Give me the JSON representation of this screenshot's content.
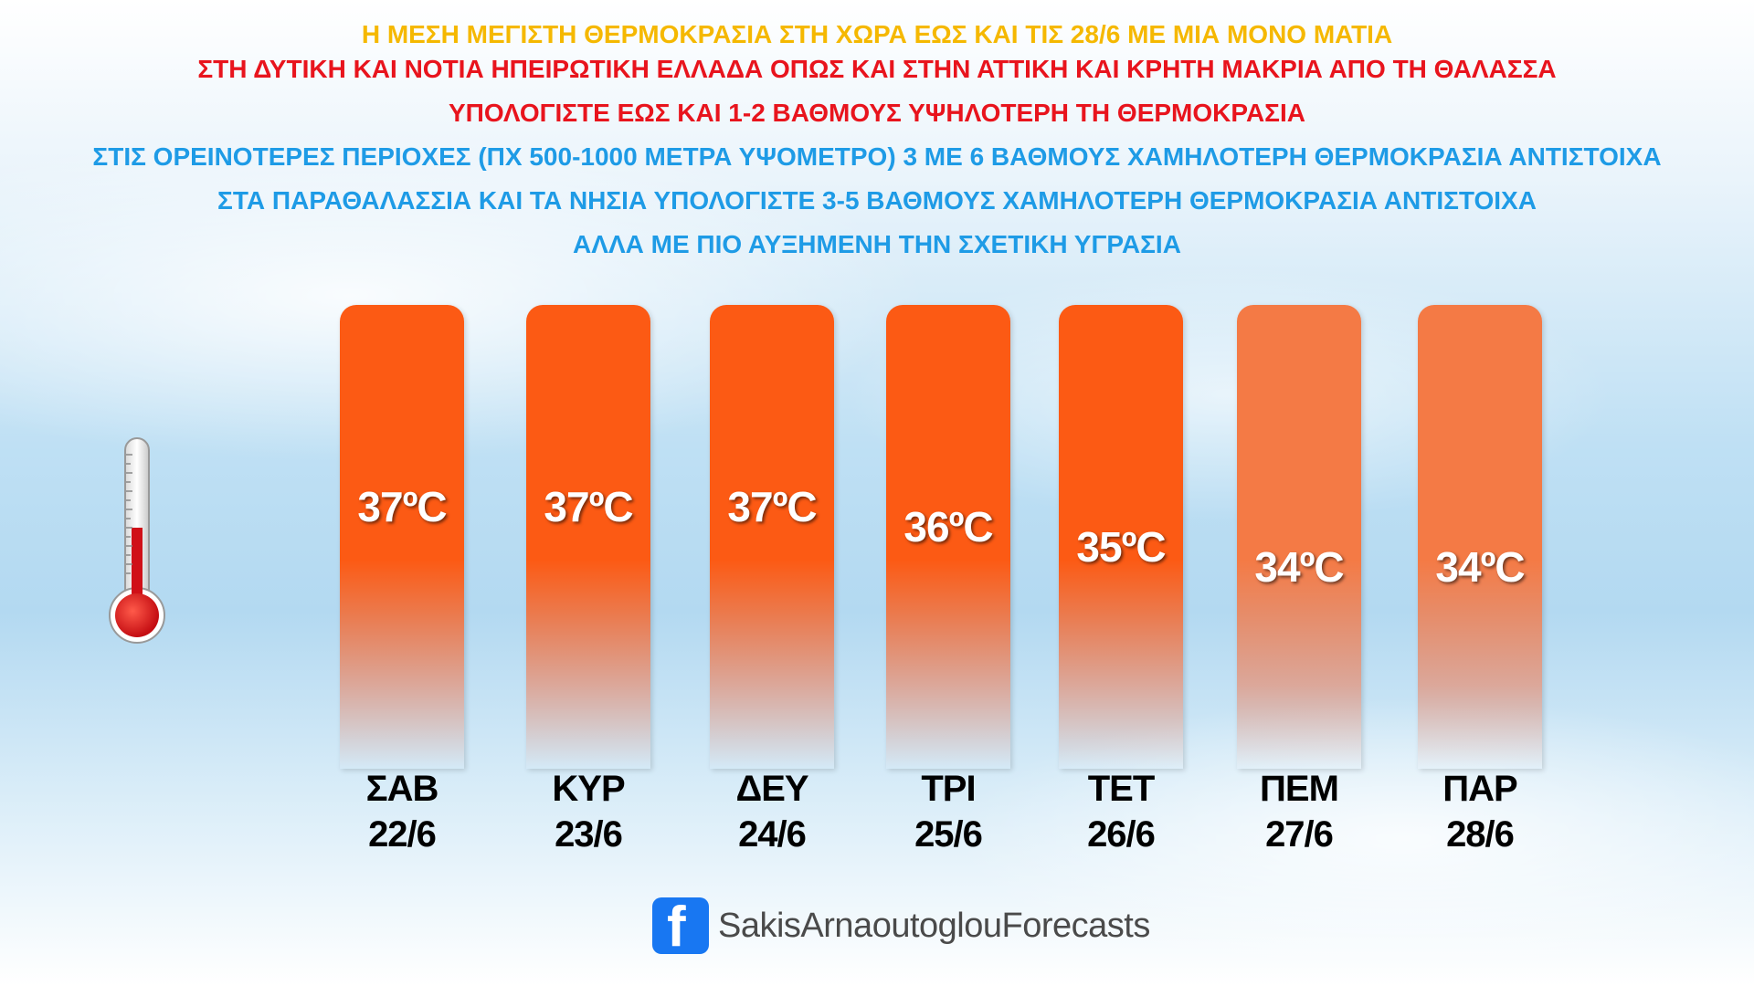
{
  "header": {
    "line1": "Η ΜΕΣΗ ΜΕΓΙΣΤΗ ΘΕΡΜΟΚΡΑΣΙΑ ΣΤΗ ΧΩΡΑ ΕΩΣ ΚΑΙ ΤΙΣ 28/6 ΜΕ ΜΙΑ ΜΟΝΟ ΜΑΤΙΑ",
    "line2": "ΣΤΗ ΔΥΤΙΚΗ ΚΑΙ ΝΟΤΙΑ ΗΠΕΙΡΩΤΙΚΗ ΕΛΛΑΔΑ ΟΠΩΣ ΚΑΙ ΣΤΗΝ ΑΤΤΙΚΗ ΚΑΙ ΚΡΗΤΗ ΜΑΚΡΙΑ ΑΠΟ ΤΗ ΘΑΛΑΣΣΑ",
    "line3": "ΥΠΟΛΟΓΙΣΤΕ ΕΩΣ ΚΑΙ 1-2 ΒΑΘΜΟΥΣ ΥΨΗΛΟΤΕΡΗ ΤΗ ΘΕΡΜΟΚΡΑΣΙΑ",
    "line4": "ΣΤΙΣ ΟΡΕΙΝΟΤΕΡΕΣ ΠΕΡΙΟΧΕΣ (ΠΧ 500-1000 ΜΕΤΡΑ ΥΨΟΜΕΤΡΟ) 3 ΜΕ 6 ΒΑΘΜΟΥΣ ΧΑΜΗΛΟΤΕΡΗ ΘΕΡΜΟΚΡΑΣΙΑ ΑΝΤΙΣΤΟΙΧΑ",
    "line5": "ΣΤΑ ΠΑΡΑΘΑΛΑΣΣΙΑ ΚΑΙ ΤΑ ΝΗΣΙΑ ΥΠΟΛΟΓΙΣΤΕ 3-5 ΒΑΘΜΟΥΣ ΧΑΜΗΛΟΤΕΡΗ ΘΕΡΜΟΚΡΑΣΙΑ ΑΝΤΙΣΤΟΙΧΑ",
    "line6": "ΑΛΛΑ ΜΕ ΠΙΟ ΑΥΞΗΜΕΝΗ ΤΗΝ ΣΧΕΤΙΚΗ ΥΓΡΑΣΙΑ"
  },
  "colors": {
    "title_yellow": "#f5b800",
    "title_red": "#e8141d",
    "title_blue": "#1e9be6",
    "bar_hot": "#fc5a14",
    "bar_warm": "#f47a45",
    "label_white": "#ffffff",
    "facebook_blue": "#1877f2"
  },
  "chart_data": {
    "type": "bar",
    "unit": "°C",
    "categories": [
      "ΣΑΒ",
      "ΚΥΡ",
      "ΔΕΥ",
      "ΤΡΙ",
      "ΤΕΤ",
      "ΠΕΜ",
      "ΠΑΡ"
    ],
    "dates": [
      "22/6",
      "23/6",
      "24/6",
      "25/6",
      "26/6",
      "27/6",
      "28/6"
    ],
    "values": [
      37,
      37,
      37,
      36,
      35,
      34,
      34
    ],
    "value_labels": [
      "37ºC",
      "37ºC",
      "37ºC",
      "36ºC",
      "35ºC",
      "34ºC",
      "34ºC"
    ],
    "title": "",
    "xlabel": "",
    "ylabel": "",
    "grid": false,
    "legend": "none"
  },
  "footer": {
    "icon": "facebook-icon",
    "icon_glyph": "f",
    "brand": "SakisArnaoutoglouForecasts"
  },
  "decor": {
    "thermometer_icon": "thermometer-icon"
  }
}
